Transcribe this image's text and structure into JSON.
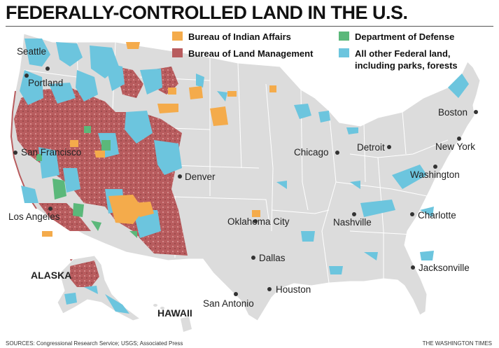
{
  "header": {
    "title": "FEDERALLY-CONTROLLED LAND IN THE U.S."
  },
  "legend": [
    {
      "label": "Bureau of Indian Affairs",
      "color": "#f4ab4b"
    },
    {
      "label": "Bureau of Land Management",
      "color": "#b85c5e"
    },
    {
      "label": "Department of Defense",
      "color": "#5bb87a"
    },
    {
      "label": "All other Federal land, including parks, forests",
      "color": "#6cc5de"
    }
  ],
  "colors": {
    "land": "#dcdcdc",
    "border": "#ffffff",
    "ocean": "#ffffff"
  },
  "cities": [
    "Seattle",
    "Portland",
    "San Francisco",
    "Los Angeles",
    "Denver",
    "Oklahoma City",
    "Dallas",
    "Houston",
    "San Antonio",
    "Chicago",
    "Detroit",
    "Nashville",
    "Washington",
    "New York",
    "Boston",
    "Charlotte",
    "Jacksonville"
  ],
  "regions": {
    "alaska": "ALASKA",
    "hawaii": "HAWAII"
  },
  "footer": {
    "sources": "SOURCES: Congressional Research Service; USGS; Associated Press",
    "credit": "THE WASHINGTON TIMES"
  }
}
